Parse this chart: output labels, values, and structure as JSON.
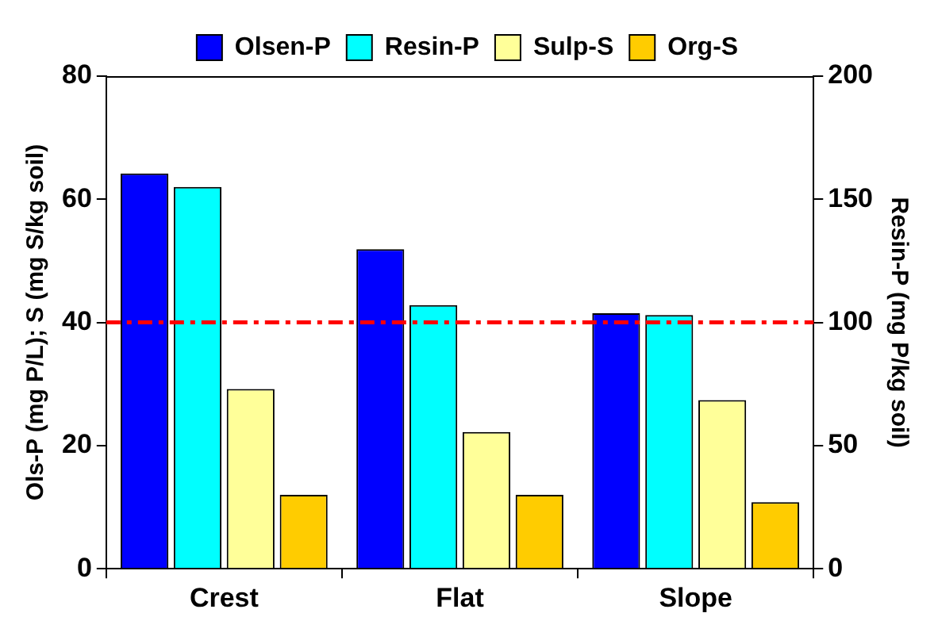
{
  "chart_data": {
    "type": "bar",
    "categories": [
      "Crest",
      "Flat",
      "Slope"
    ],
    "series": [
      {
        "name": "Olsen-P",
        "color": "#0000ff",
        "values": [
          64.2,
          51.9,
          41.5
        ]
      },
      {
        "name": "Resin-P",
        "color": "#00ffff",
        "values": [
          155,
          107,
          103
        ],
        "axis": "y2"
      },
      {
        "name": "Sulp-S",
        "color": "#ffff99",
        "values": [
          29.2,
          22.2,
          27.4
        ]
      },
      {
        "name": "Org-S",
        "color": "#ffcc00",
        "values": [
          12,
          12,
          10.8
        ]
      }
    ],
    "ylabel": "Ols-P (mg P/L); S (mg S/kg soil)",
    "y2label": "Resin-P (mg P/kg soil)",
    "ylim": [
      0,
      80
    ],
    "yticks": [
      0,
      20,
      40,
      60,
      80
    ],
    "y2lim": [
      0,
      200
    ],
    "y2ticks": [
      0,
      50,
      100,
      150,
      200
    ],
    "ref_lines": [
      {
        "axis": "y",
        "value": 40,
        "color": "#ff0000",
        "line_style": "dashdot"
      }
    ],
    "grid": false,
    "legend": "top"
  }
}
